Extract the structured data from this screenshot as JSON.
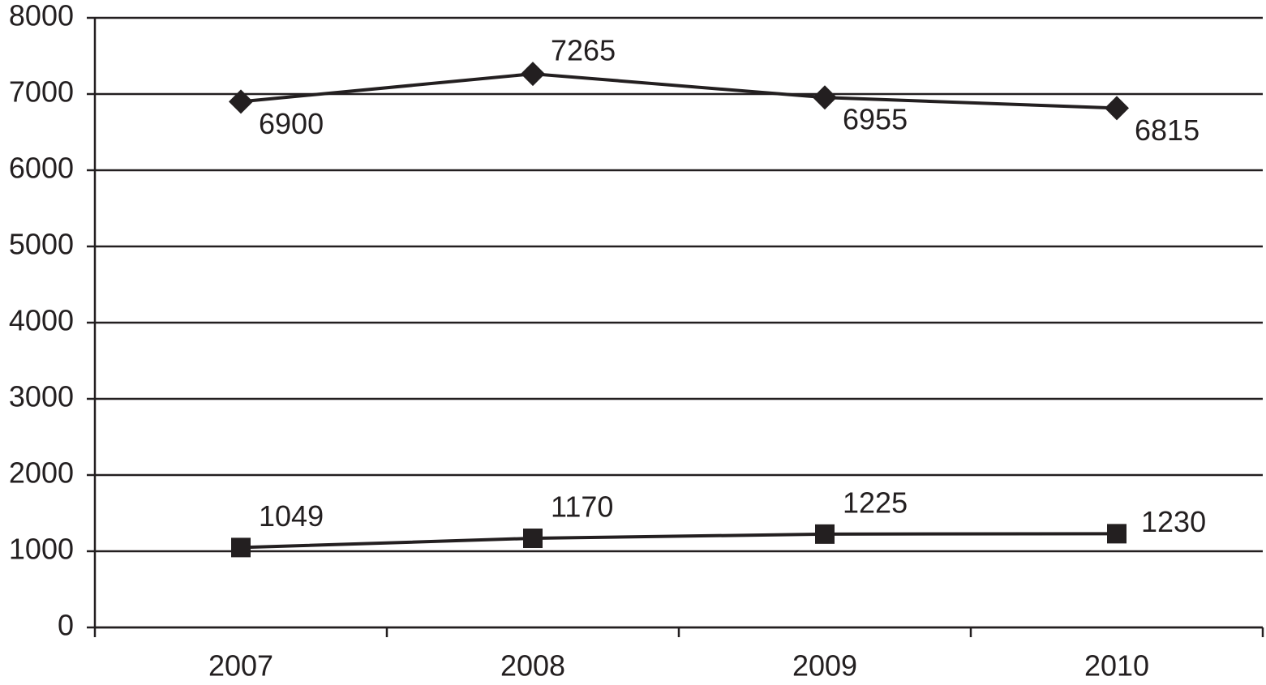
{
  "chart_data": {
    "type": "line",
    "categories": [
      "2007",
      "2008",
      "2009",
      "2010"
    ],
    "series": [
      {
        "values": [
          6900,
          7265,
          6955,
          6815
        ],
        "color": "#231f20",
        "marker": "diamond"
      },
      {
        "values": [
          1049,
          1170,
          1225,
          1230
        ],
        "color": "#231f20",
        "marker": "square"
      }
    ],
    "ylim": [
      0,
      8000
    ],
    "yticks": [
      0,
      1000,
      2000,
      3000,
      4000,
      5000,
      6000,
      7000,
      8000
    ],
    "grid": true
  }
}
